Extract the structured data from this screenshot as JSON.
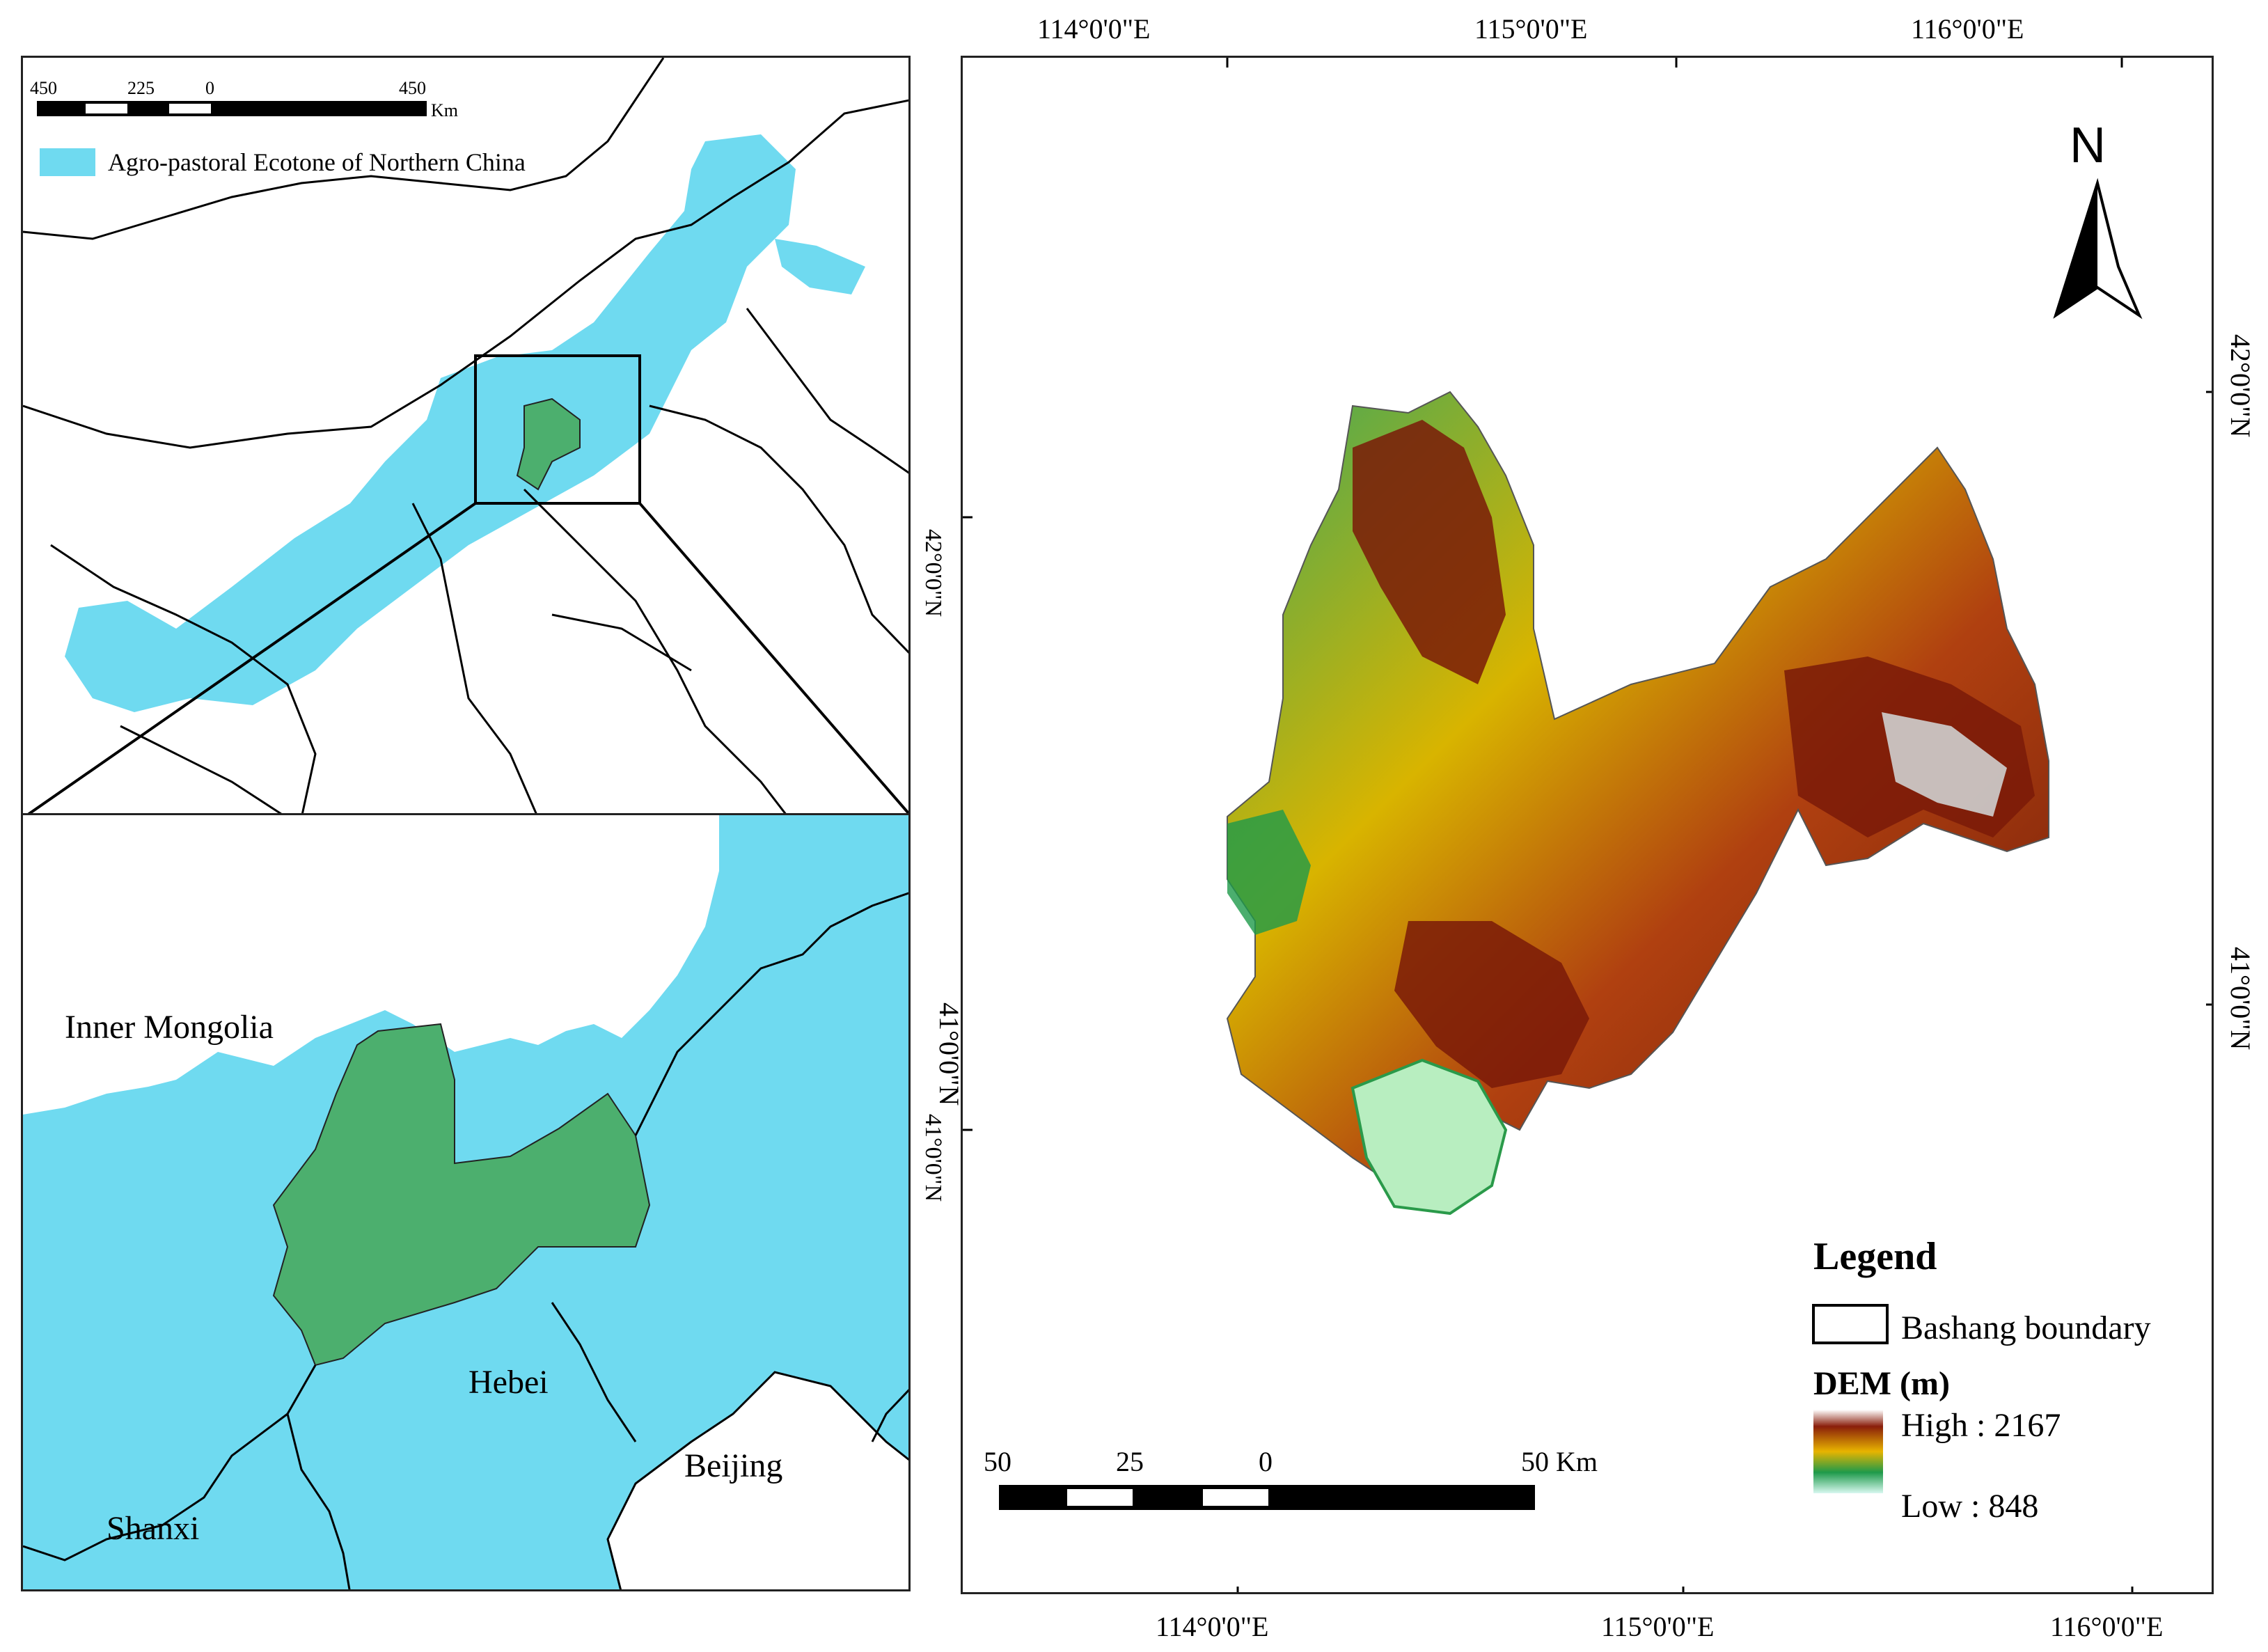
{
  "overview": {
    "scale_ticks": [
      "450",
      "225",
      "0",
      "450"
    ],
    "scale_unit": "Km",
    "legend_label": "Agro-pastoral Ecotone of Northern China",
    "colors": {
      "ecotone": "#6fdaf0",
      "study_area": "#4caf6e",
      "boundary": "#000000"
    }
  },
  "inset": {
    "labels": {
      "inner_mongolia": "Inner Mongolia",
      "hebei": "Hebei",
      "beijing": "Beijing",
      "shanxi": "Shanxi"
    }
  },
  "dem_map": {
    "top_lon_labels": [
      "114°0'0\"E",
      "115°0'0\"E",
      "116°0'0\"E"
    ],
    "bottom_lon_labels": [
      "114°0'0\"E",
      "115°0'0\"E",
      "116°0'0\"E"
    ],
    "left_lat_labels": [
      "42°0'0\"N",
      "41°0'0\"N"
    ],
    "right_lat_labels": [
      "42°0'0\"N",
      "41°0'0\"N"
    ],
    "north_arrow": "N",
    "scale_ticks": [
      "50",
      "25",
      "0",
      "50 Km"
    ],
    "legend": {
      "title": "Legend",
      "boundary_label": "Bashang boundary",
      "dem_title": "DEM (m)",
      "high_label": "High : 2167",
      "low_label": "Low : 848"
    },
    "colors": {
      "high": "#8a1e0a",
      "mid": "#e8b400",
      "low": "#1e9a4a",
      "lowest": "#d8f8f0"
    }
  }
}
